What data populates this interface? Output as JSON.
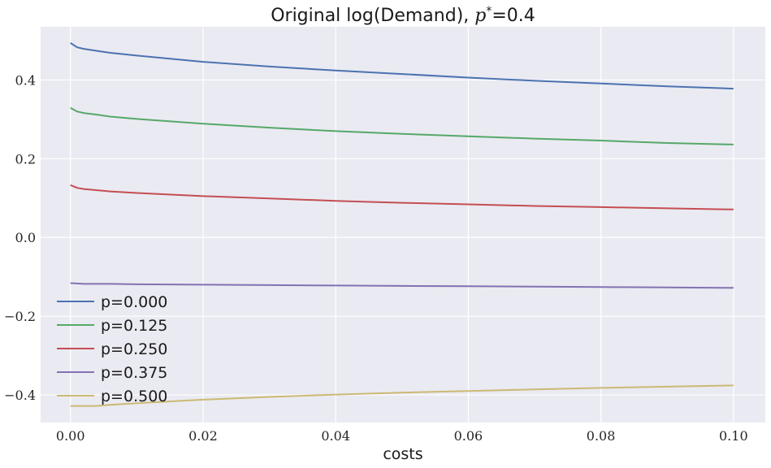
{
  "chart_data": {
    "type": "line",
    "title": "Original log(Demand), p*=0.4",
    "title_main": "Original log(Demand), ",
    "title_var": "p",
    "title_sup": "*",
    "title_eq": "=0.4",
    "xlabel": "costs",
    "ylabel": "",
    "xlim": [
      -0.0045,
      0.1048
    ],
    "ylim": [
      -0.47,
      0.535
    ],
    "xticks": [
      0.0,
      0.02,
      0.04,
      0.06,
      0.08,
      0.1
    ],
    "xtick_labels": [
      "0.00",
      "0.02",
      "0.04",
      "0.06",
      "0.08",
      "0.10"
    ],
    "yticks": [
      -0.4,
      -0.2,
      0.0,
      0.2,
      0.4
    ],
    "ytick_labels": [
      "−0.4",
      "−0.2",
      "0.0",
      "0.2",
      "0.4"
    ],
    "grid": true,
    "legend_position": "lower-left",
    "background": "#eaeaf2",
    "x": [
      0.0,
      0.001,
      0.002,
      0.004,
      0.006,
      0.01,
      0.02,
      0.03,
      0.04,
      0.05,
      0.06,
      0.07,
      0.08,
      0.09,
      0.1
    ],
    "series": [
      {
        "name": "p=0.000",
        "color": "#4c72b0",
        "values": [
          0.494,
          0.483,
          0.479,
          0.474,
          0.469,
          0.462,
          0.446,
          0.434,
          0.424,
          0.415,
          0.406,
          0.398,
          0.391,
          0.384,
          0.378
        ]
      },
      {
        "name": "p=0.125",
        "color": "#55a868",
        "values": [
          0.329,
          0.32,
          0.316,
          0.312,
          0.307,
          0.301,
          0.289,
          0.279,
          0.27,
          0.263,
          0.257,
          0.251,
          0.246,
          0.24,
          0.236
        ]
      },
      {
        "name": "p=0.250",
        "color": "#c44e52",
        "values": [
          0.133,
          0.126,
          0.123,
          0.12,
          0.117,
          0.113,
          0.105,
          0.099,
          0.093,
          0.088,
          0.084,
          0.08,
          0.077,
          0.074,
          0.071
        ]
      },
      {
        "name": "p=0.375",
        "color": "#8172b2",
        "values": [
          -0.116,
          -0.117,
          -0.118,
          -0.118,
          -0.118,
          -0.119,
          -0.12,
          -0.121,
          -0.122,
          -0.123,
          -0.124,
          -0.125,
          -0.126,
          -0.127,
          -0.128
        ]
      },
      {
        "name": "p=0.500",
        "color": "#ccb974",
        "values": [
          -0.428,
          -0.428,
          -0.428,
          -0.428,
          -0.425,
          -0.421,
          -0.412,
          -0.405,
          -0.399,
          -0.394,
          -0.39,
          -0.386,
          -0.382,
          -0.379,
          -0.376
        ]
      }
    ]
  }
}
